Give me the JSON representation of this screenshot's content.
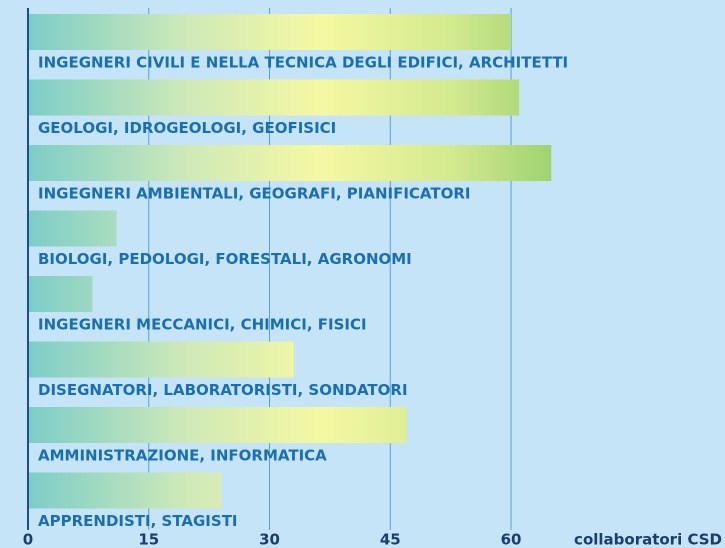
{
  "chart_data": {
    "type": "barh",
    "categories": [
      "INGEGNERI CIVILI E NELLA TECNICA DEGLI EDIFICI, ARCHITETTI",
      "GEOLOGI, IDROGEOLOGI, GEOFISICI",
      "INGEGNERI AMBIENTALI, GEOGRAFI, PIANIFICATORI",
      "BIOLOGI, PEDOLOGI, FORESTALI, AGRONOMI",
      "INGEGNERI MECCANICI, CHIMICI, FISICI",
      "DISEGNATORI, LABORATORISTI, SONDATORI",
      "AMMINISTRAZIONE, INFORMATICA",
      "APPRENDISTI, STAGISTI"
    ],
    "values": [
      60,
      61,
      65,
      11,
      8,
      33,
      47,
      24
    ],
    "xlabel": "collaboratori CSD",
    "xlim": [
      0,
      87
    ],
    "xticks": [
      0,
      15,
      30,
      45,
      60
    ],
    "grid": true
  }
}
